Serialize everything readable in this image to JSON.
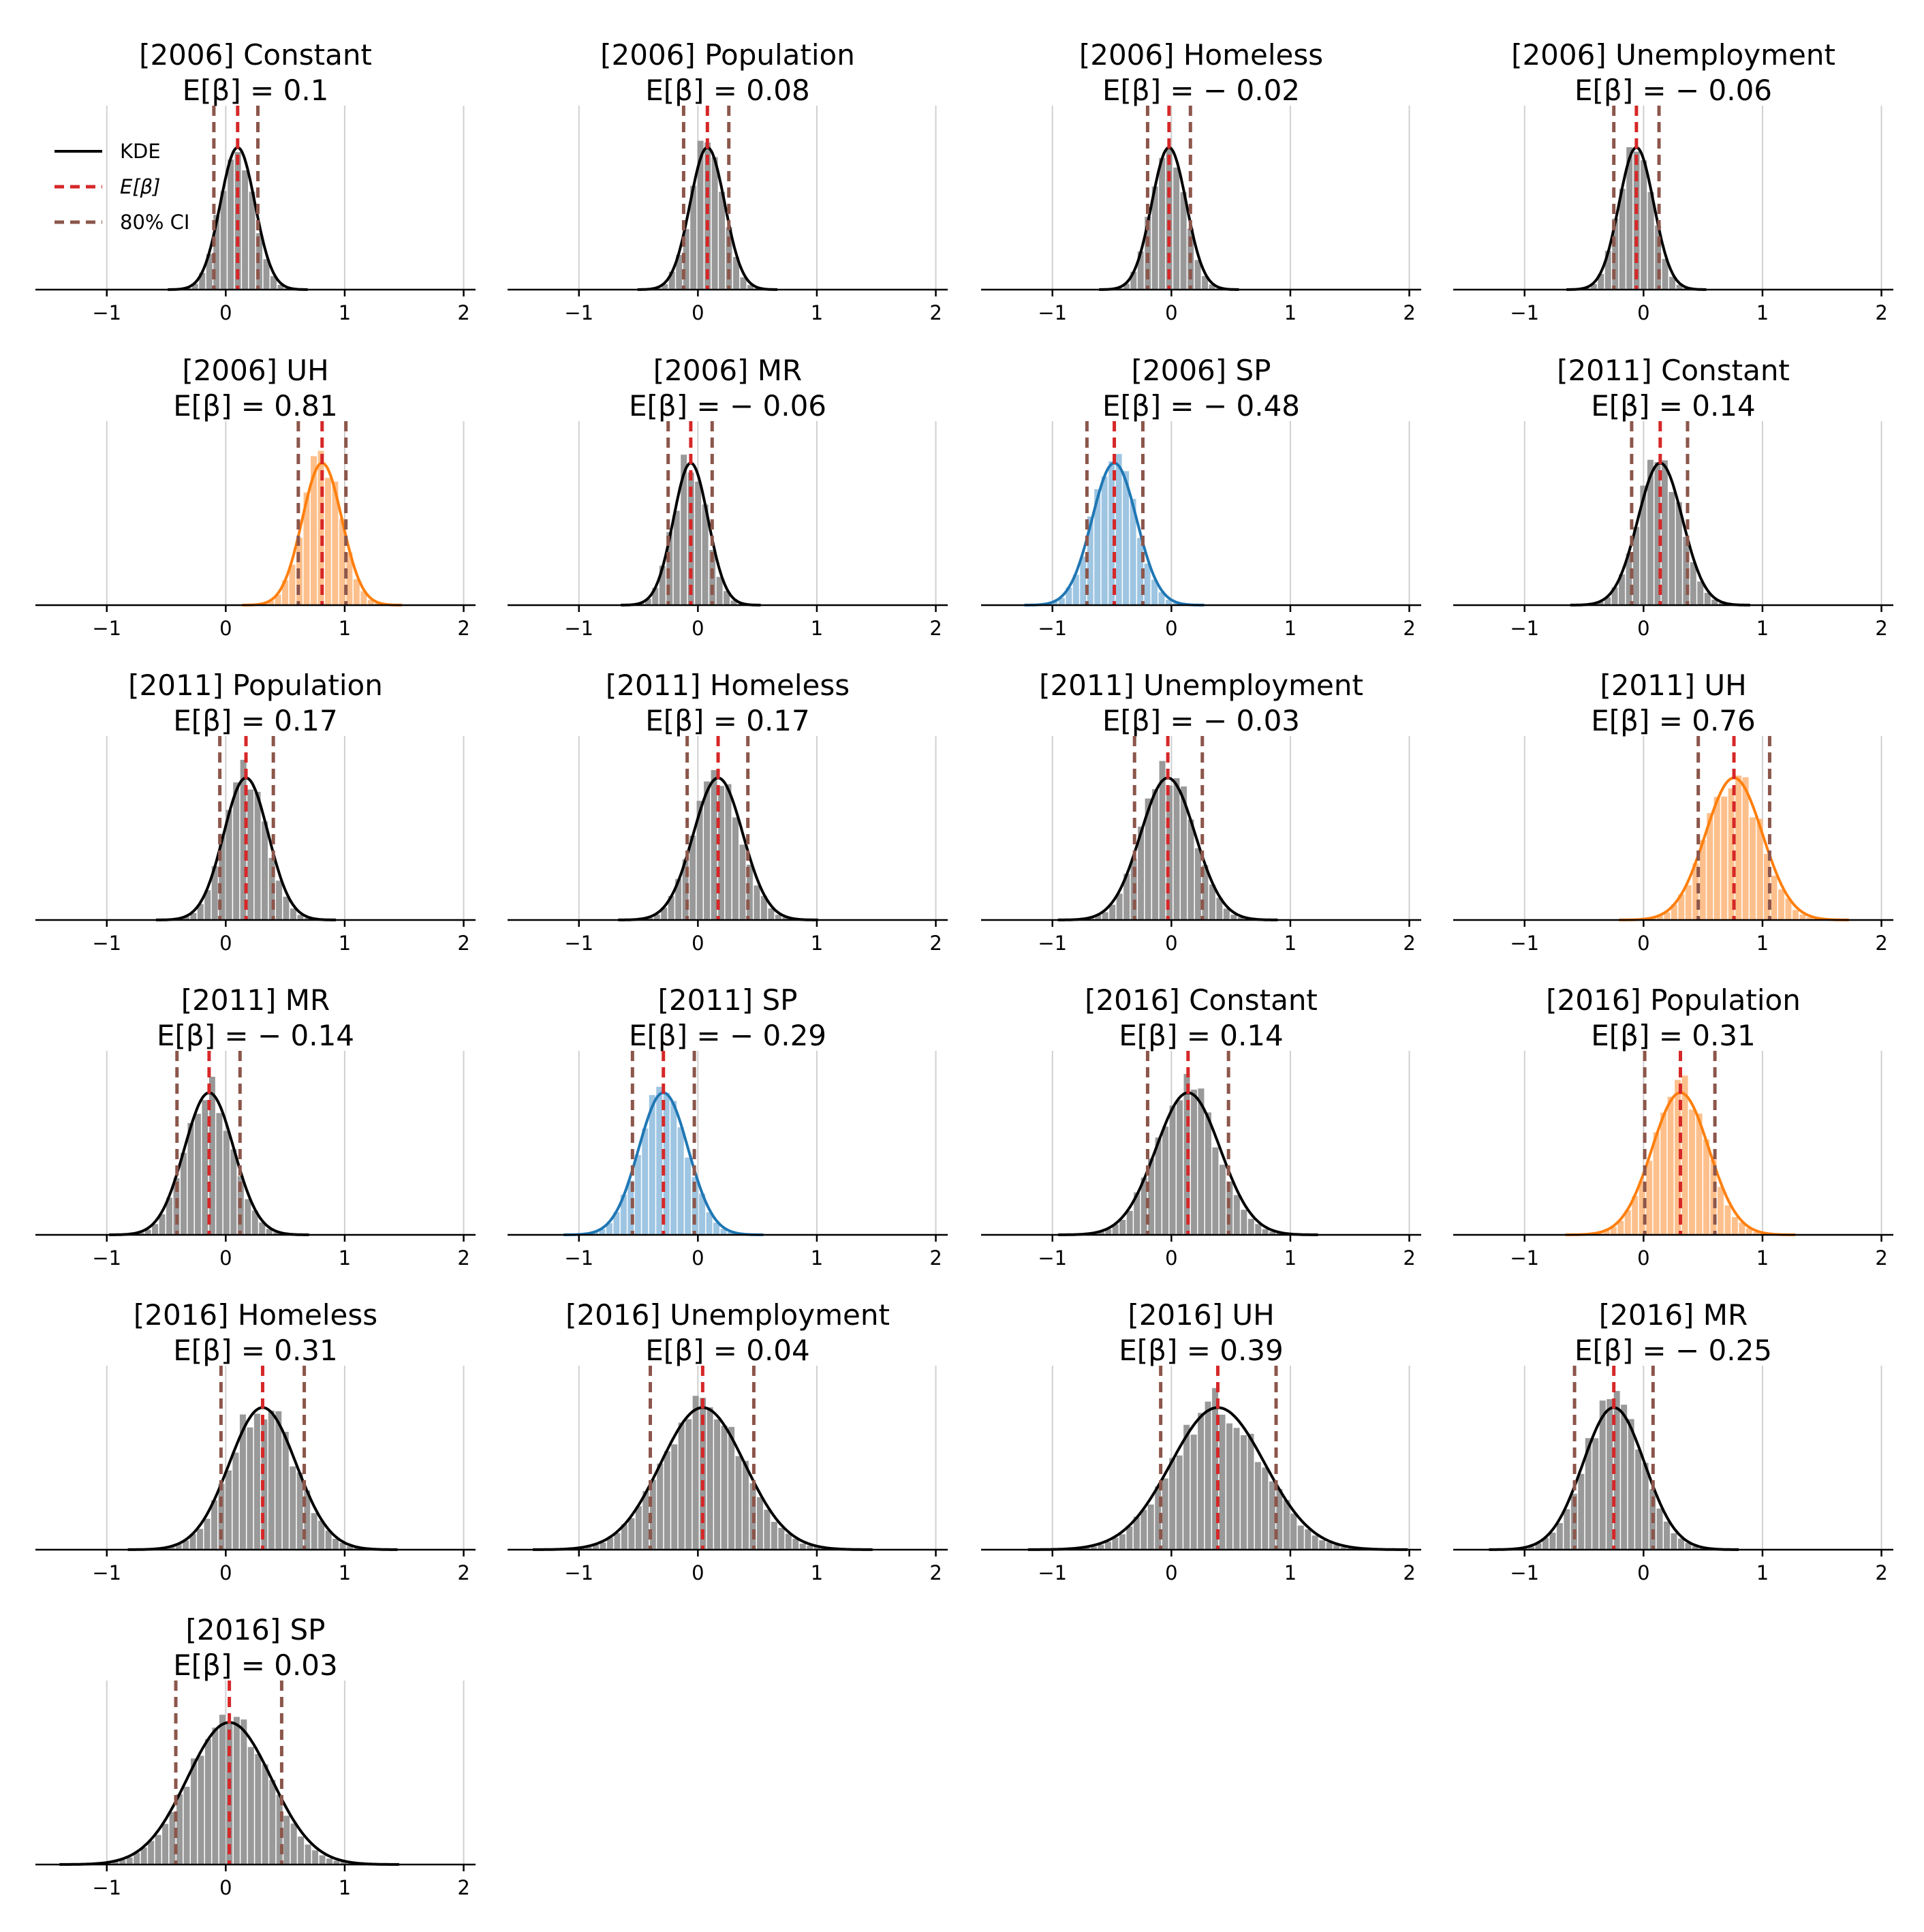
{
  "colors": {
    "kde": "#000000",
    "mean": "#d62728",
    "ci": "#8c564b",
    "gray": "#999999",
    "orange": "#ff7f0e",
    "orange_fill": "#fdc08c",
    "blue": "#1f77b4",
    "blue_fill": "#9ec5e2",
    "grid": "#d0d0d0"
  },
  "legend": {
    "kde": "KDE",
    "mean": "E[β]",
    "ci": "80% CI"
  },
  "chart_data": {
    "type": "histogram-kde-grid",
    "xlim": [
      -1.6,
      2.1
    ],
    "xticks": [
      -1,
      0,
      1,
      2
    ],
    "xtick_labels": [
      "−1",
      "0",
      "1",
      "2"
    ],
    "panels": [
      {
        "title": "[2006] Constant",
        "subtitle": "E[β] = 0.1",
        "mean": 0.1,
        "ci": [
          -0.1,
          0.27
        ],
        "sd": 0.14,
        "color": "gray"
      },
      {
        "title": "[2006] Population",
        "subtitle": "E[β] = 0.08",
        "mean": 0.08,
        "ci": [
          -0.12,
          0.26
        ],
        "sd": 0.14,
        "color": "gray"
      },
      {
        "title": "[2006] Homeless",
        "subtitle": "E[β] = − 0.02",
        "mean": -0.02,
        "ci": [
          -0.2,
          0.16
        ],
        "sd": 0.14,
        "color": "gray"
      },
      {
        "title": "[2006] Unemployment",
        "subtitle": "E[β] = − 0.06",
        "mean": -0.06,
        "ci": [
          -0.25,
          0.13
        ],
        "sd": 0.14,
        "color": "gray"
      },
      {
        "title": "[2006] UH",
        "subtitle": "E[β] = 0.81",
        "mean": 0.81,
        "ci": [
          0.61,
          1.01
        ],
        "sd": 0.16,
        "color": "orange"
      },
      {
        "title": "[2006] MR",
        "subtitle": "E[β] = − 0.06",
        "mean": -0.06,
        "ci": [
          -0.25,
          0.12
        ],
        "sd": 0.14,
        "color": "gray"
      },
      {
        "title": "[2006] SP",
        "subtitle": "E[β] = − 0.48",
        "mean": -0.48,
        "ci": [
          -0.71,
          -0.24
        ],
        "sd": 0.18,
        "color": "blue"
      },
      {
        "title": "[2011] Constant",
        "subtitle": "E[β] = 0.14",
        "mean": 0.14,
        "ci": [
          -0.1,
          0.37
        ],
        "sd": 0.18,
        "color": "gray"
      },
      {
        "title": "[2011] Population",
        "subtitle": "E[β] = 0.17",
        "mean": 0.17,
        "ci": [
          -0.05,
          0.4
        ],
        "sd": 0.18,
        "color": "gray"
      },
      {
        "title": "[2011] Homeless",
        "subtitle": "E[β] = 0.17",
        "mean": 0.17,
        "ci": [
          -0.09,
          0.42
        ],
        "sd": 0.2,
        "color": "gray"
      },
      {
        "title": "[2011] Unemployment",
        "subtitle": "E[β] = − 0.03",
        "mean": -0.03,
        "ci": [
          -0.31,
          0.26
        ],
        "sd": 0.22,
        "color": "gray"
      },
      {
        "title": "[2011] UH",
        "subtitle": "E[β] = 0.76",
        "mean": 0.76,
        "ci": [
          0.46,
          1.06
        ],
        "sd": 0.23,
        "color": "orange"
      },
      {
        "title": "[2011] MR",
        "subtitle": "E[β] = − 0.14",
        "mean": -0.14,
        "ci": [
          -0.41,
          0.12
        ],
        "sd": 0.2,
        "color": "gray"
      },
      {
        "title": "[2011] SP",
        "subtitle": "E[β] = − 0.29",
        "mean": -0.29,
        "ci": [
          -0.55,
          -0.03
        ],
        "sd": 0.2,
        "color": "blue"
      },
      {
        "title": "[2016] Constant",
        "subtitle": "E[β] = 0.14",
        "mean": 0.14,
        "ci": [
          -0.2,
          0.48
        ],
        "sd": 0.26,
        "color": "gray"
      },
      {
        "title": "[2016] Population",
        "subtitle": "E[β] = 0.31",
        "mean": 0.31,
        "ci": [
          0.01,
          0.6
        ],
        "sd": 0.23,
        "color": "orange"
      },
      {
        "title": "[2016] Homeless",
        "subtitle": "E[β] = 0.31",
        "mean": 0.31,
        "ci": [
          -0.04,
          0.66
        ],
        "sd": 0.27,
        "color": "gray"
      },
      {
        "title": "[2016] Unemployment",
        "subtitle": "E[β] = 0.04",
        "mean": 0.04,
        "ci": [
          -0.4,
          0.47
        ],
        "sd": 0.34,
        "color": "gray"
      },
      {
        "title": "[2016] UH",
        "subtitle": "E[β] = 0.39",
        "mean": 0.39,
        "ci": [
          -0.09,
          0.88
        ],
        "sd": 0.38,
        "color": "gray"
      },
      {
        "title": "[2016] MR",
        "subtitle": "E[β] = − 0.25",
        "mean": -0.25,
        "ci": [
          -0.58,
          0.08
        ],
        "sd": 0.25,
        "color": "gray"
      },
      {
        "title": "[2016] SP",
        "subtitle": "E[β] = 0.03",
        "mean": 0.03,
        "ci": [
          -0.42,
          0.47
        ],
        "sd": 0.34,
        "color": "gray"
      }
    ]
  }
}
